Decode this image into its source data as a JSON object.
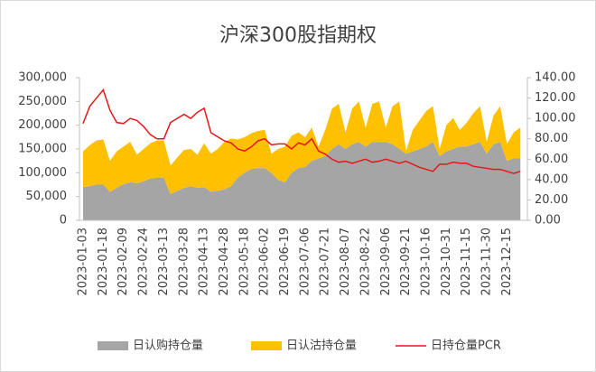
{
  "chart_data": {
    "type": "area",
    "title": "沪深300股指期权",
    "categories": [
      "2023-01-03",
      null,
      null,
      "2023-01-18",
      null,
      null,
      "2023-02-09",
      null,
      null,
      "2023-02-24",
      null,
      null,
      "2023-03-13",
      null,
      null,
      "2023-03-28",
      null,
      null,
      "2023-04-13",
      null,
      null,
      "2023-04-28",
      null,
      null,
      "2023-05-18",
      null,
      null,
      "2023-06-02",
      null,
      null,
      "2023-06-19",
      null,
      null,
      "2023-07-06",
      null,
      null,
      "2023-07-21",
      null,
      null,
      "2023-08-07",
      null,
      null,
      "2023-08-22",
      null,
      null,
      "2023-09-06",
      null,
      null,
      "2023-09-21",
      null,
      null,
      "2023-10-16",
      null,
      null,
      "2023-10-31",
      null,
      null,
      "2023-11-15",
      null,
      null,
      "2023-11-30",
      null,
      null,
      "2023-12-15",
      null,
      null
    ],
    "series": [
      {
        "name": "日认购持仓量",
        "color": "#a5a5a5",
        "values": [
          70000,
          72000,
          75000,
          75000,
          60000,
          68000,
          76000,
          80000,
          78000,
          82000,
          88000,
          90000,
          90000,
          55000,
          62000,
          68000,
          72000,
          68000,
          70000,
          60000,
          62000,
          65000,
          72000,
          90000,
          100000,
          108000,
          110000,
          110000,
          100000,
          85000,
          80000,
          100000,
          110000,
          112000,
          125000,
          130000,
          135000,
          150000,
          160000,
          150000,
          160000,
          165000,
          155000,
          165000,
          165000,
          165000,
          160000,
          150000,
          140000,
          145000,
          150000,
          155000,
          165000,
          135000,
          145000,
          150000,
          155000,
          155000,
          160000,
          165000,
          140000,
          160000,
          165000,
          125000,
          130000,
          130000
        ]
      },
      {
        "name": "日认沽持仓量",
        "color": "#ffc000",
        "values": [
          75000,
          86000,
          93000,
          95000,
          65000,
          77000,
          79000,
          85000,
          60000,
          68000,
          74000,
          78000,
          78000,
          60000,
          70000,
          80000,
          78000,
          70000,
          92000,
          80000,
          88000,
          100000,
          100000,
          80000,
          75000,
          75000,
          78000,
          80000,
          40000,
          65000,
          75000,
          78000,
          75000,
          63000,
          70000,
          25000,
          55000,
          85000,
          85000,
          35000,
          75000,
          85000,
          40000,
          80000,
          85000,
          30000,
          80000,
          100000,
          5000,
          45000,
          60000,
          75000,
          75000,
          15000,
          55000,
          65000,
          35000,
          50000,
          65000,
          75000,
          25000,
          60000,
          75000,
          35000,
          55000,
          65000
        ]
      },
      {
        "name": "日持仓量PCR",
        "color": "#e8161a",
        "axis": "y2",
        "values": [
          95,
          112,
          120,
          128,
          108,
          96,
          95,
          100,
          98,
          92,
          84,
          80,
          80,
          96,
          100,
          104,
          100,
          106,
          110,
          86,
          82,
          78,
          76,
          70,
          68,
          72,
          78,
          80,
          74,
          75,
          75,
          70,
          76,
          74,
          80,
          68,
          65,
          60,
          57,
          58,
          56,
          58,
          60,
          57,
          58,
          60,
          58,
          56,
          58,
          55,
          52,
          50,
          48,
          55,
          55,
          57,
          56,
          56,
          53,
          52,
          51,
          50,
          50,
          48,
          46,
          48
        ]
      }
    ],
    "ylim": [
      0,
      300000
    ],
    "yticks": [
      0,
      {
        "value": 50000,
        "label": "50,000"
      },
      {
        "value": 100000,
        "label": "100,000"
      },
      {
        "value": 150000,
        "label": "150,000"
      },
      {
        "value": 200000,
        "label": "200,000"
      },
      {
        "value": 250000,
        "label": "250,000"
      },
      {
        "value": 300000,
        "label": "300,000"
      }
    ],
    "y2lim": [
      0,
      140
    ],
    "y2ticks": [
      {
        "value": 0,
        "label": "0.00"
      },
      {
        "value": 20,
        "label": "20.00"
      },
      {
        "value": 40,
        "label": "40.00"
      },
      {
        "value": 60,
        "label": "60.00"
      },
      {
        "value": 80,
        "label": "80.00"
      },
      {
        "value": 100,
        "label": "100.00"
      },
      {
        "value": 120,
        "label": "120.00"
      },
      {
        "value": 140,
        "label": "140.00"
      }
    ],
    "legend": "bottom"
  }
}
